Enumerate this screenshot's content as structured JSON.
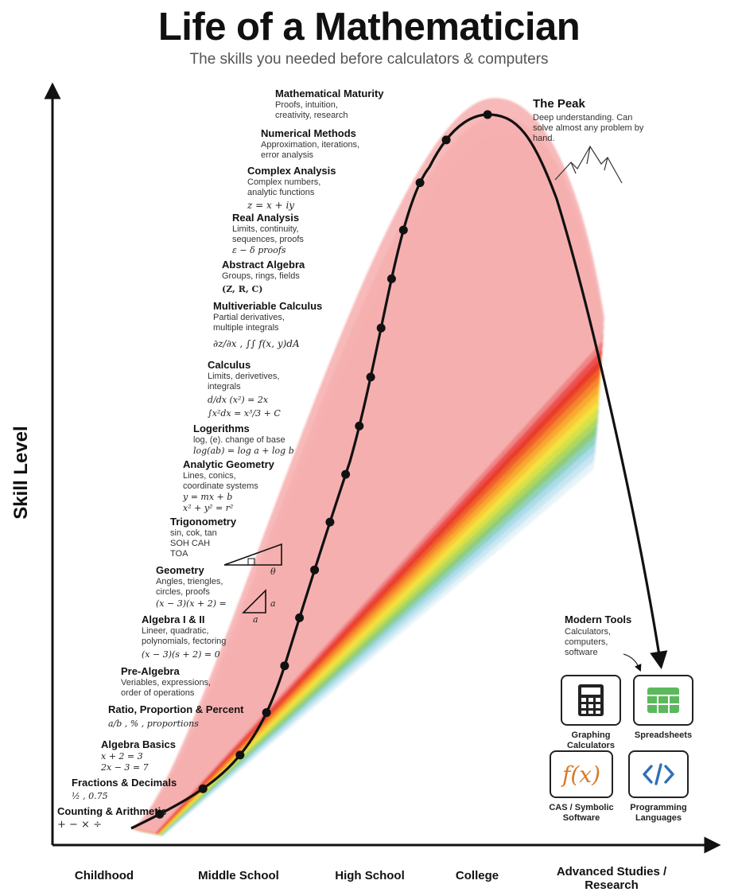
{
  "title": "Life of a Mathematician",
  "subtitle": "The skills you needed before calculators & computers",
  "y_axis_label": "Skill Level",
  "x_axis_stages": [
    "Childhood",
    "Middle School",
    "High School",
    "College",
    "Advanced Studies / Research"
  ],
  "skills": [
    {
      "title": "Counting & Arithmetic",
      "desc": "",
      "formula": [
        "+ − × ÷"
      ]
    },
    {
      "title": "Fractions & Decimals",
      "desc": "",
      "formula": [
        "½ , 0.75"
      ]
    },
    {
      "title": "Algebra Basics",
      "desc": "",
      "formula": [
        "x + 2 = 3",
        "2x − 3 = 7"
      ]
    },
    {
      "title": "Ratio, Proportion & Percent",
      "desc": "",
      "formula": [
        "a/b , % , proportions"
      ]
    },
    {
      "title": "Pre-Algebra",
      "desc": "Veriables, expressions, order of operations",
      "formula": []
    },
    {
      "title": "Algebra I & II",
      "desc": "Lineer, quadratic, polynomials, fectoring",
      "formula": [
        "(x − 3)(s + 2) = 0"
      ]
    },
    {
      "title": "Geometry",
      "desc": "Angles, triengles, circles, proofs",
      "formula": [
        "(x − 3)(x + 2) ="
      ]
    },
    {
      "title": "Trigonometry",
      "desc": "sin, cok, tan SOH CAH TOA",
      "formula": []
    },
    {
      "title": "Analytic Geometry",
      "desc": "Lines, conics, coordinate systems",
      "formula": [
        "y = mx + b",
        "x² + y² = r²"
      ]
    },
    {
      "title": "Logerithms",
      "desc": "log, (e). change of base",
      "formula": [
        "log(ab) = log a + log b"
      ]
    },
    {
      "title": "Calculus",
      "desc": "Limits, derivetives, integrals",
      "formula": [
        "d/dx (x²) = 2x",
        "∫x²dx = x³/3 + C"
      ]
    },
    {
      "title": "Multiveriable Calculus",
      "desc": "Partial derivatives, multiple integrals",
      "formula": [
        "∂z/∂x , ∫∫ f(x, y)dA"
      ]
    },
    {
      "title": "Abstract Algebra",
      "desc": "Groups, rings, fields",
      "formula": [
        "(Z, R, C)"
      ]
    },
    {
      "title": "Real Analysis",
      "desc": "Limits, continuity, sequences, proofs",
      "formula": [
        "ε − δ proofs"
      ]
    },
    {
      "title": "Complex Analysis",
      "desc": "Complex numbers, analytic functions",
      "formula": [
        "z = x + iy"
      ]
    },
    {
      "title": "Numerical Methods",
      "desc": "Approximation, iterations, error analysis",
      "formula": []
    },
    {
      "title": "Mathematical Maturity",
      "desc": "Proofs, intuition, creativity, research",
      "formula": []
    }
  ],
  "peak": {
    "title": "The Peak",
    "desc": "Deep understanding. Can solve almost any problem by hand."
  },
  "modern_tools": {
    "title": "Modern Tools",
    "desc": "Calculators, computers, software",
    "tools": [
      {
        "label": "Graphing Calculators",
        "icon": "calculator-icon"
      },
      {
        "label": "Spreadsheets",
        "icon": "spreadsheet-icon"
      },
      {
        "label": "CAS / Symbolic Software",
        "icon": "fx-icon"
      },
      {
        "label": "Programming Languages",
        "icon": "code-icon"
      }
    ]
  },
  "triangle_labels": {
    "a": "a",
    "theta": "θ"
  },
  "colors": {
    "rainbow": [
      "#f6b3b3",
      "#f08a8a",
      "#ec5454",
      "#e8382b",
      "#ef5a2a",
      "#f4822c",
      "#f8a531",
      "#fac738",
      "#f5e23f",
      "#d7e24a",
      "#b4d85a",
      "#8fcc74",
      "#8dd0b8",
      "#a9dbe9",
      "#c7e6f2",
      "#e4f2f8"
    ],
    "axis": "#111111",
    "spreadsheet": "#5cb85c",
    "fx": "#d87a2a",
    "code": "#2f6fb6"
  }
}
